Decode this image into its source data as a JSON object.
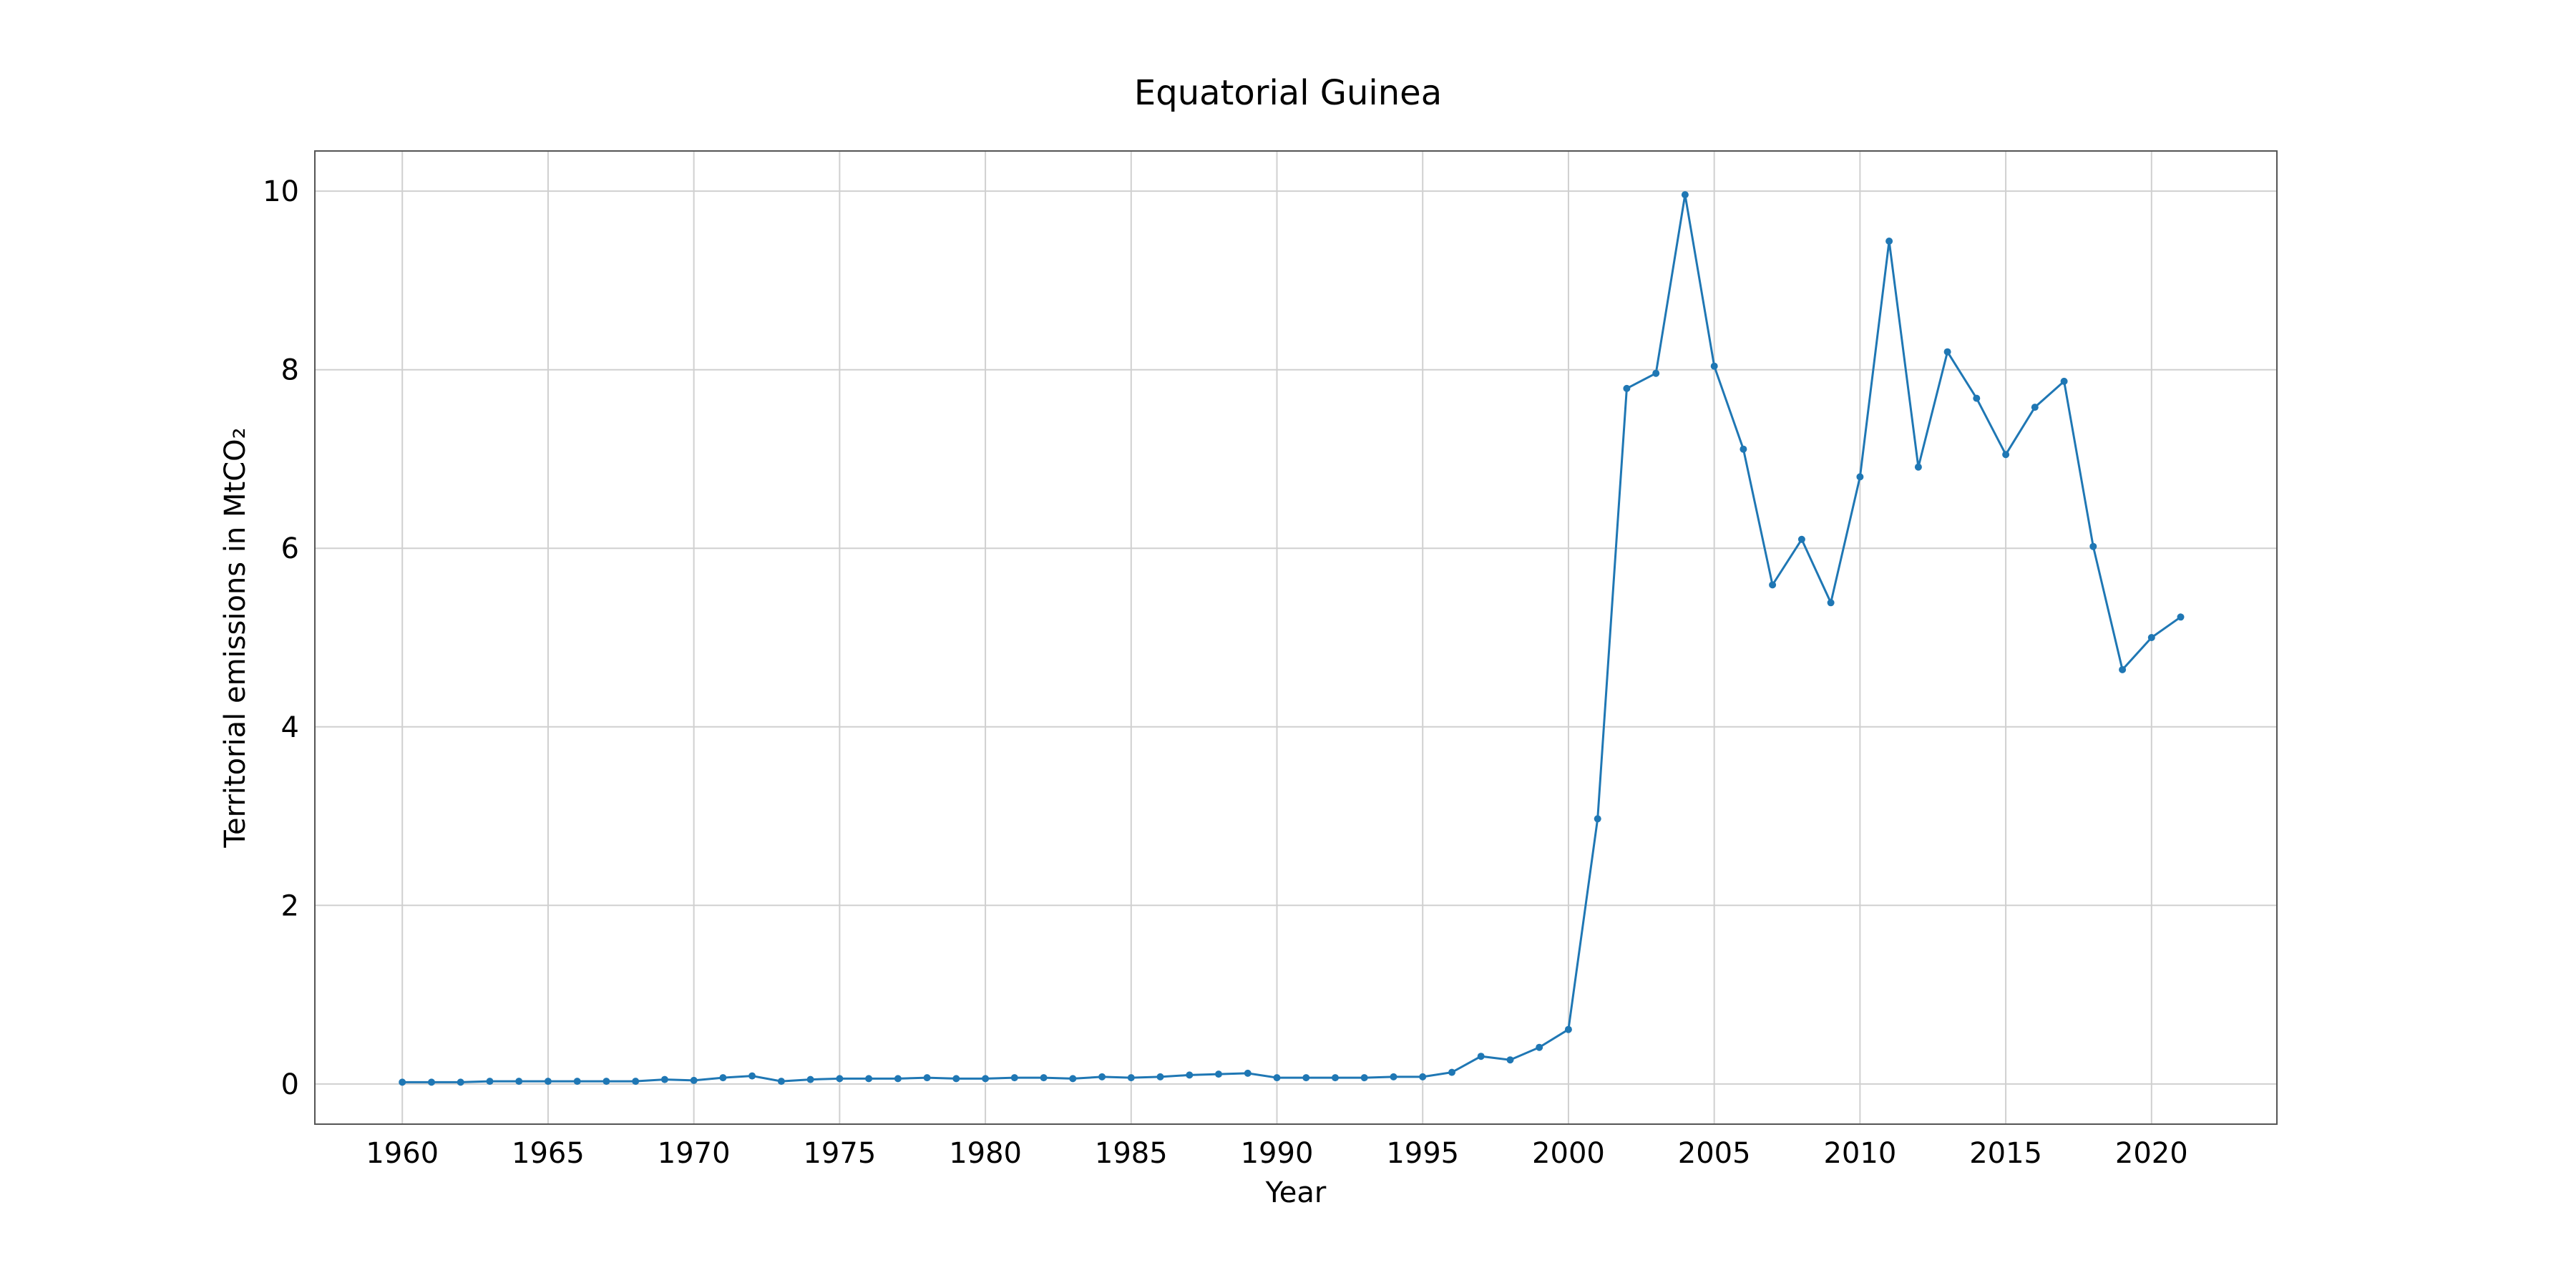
{
  "chart_data": {
    "type": "line",
    "title": "Equatorial Guinea",
    "xlabel": "Year",
    "ylabel": "Territorial emissions in MtCO₂",
    "xlim": [
      1957,
      2024.3
    ],
    "ylim": [
      -0.45,
      10.45
    ],
    "xticks": [
      1960,
      1965,
      1970,
      1975,
      1980,
      1985,
      1990,
      1995,
      2000,
      2005,
      2010,
      2015,
      2020
    ],
    "yticks": [
      0,
      2,
      4,
      6,
      8,
      10
    ],
    "grid": true,
    "color": "#1f77b4",
    "series": [
      {
        "x": [
          1960,
          1961,
          1962,
          1963,
          1964,
          1965,
          1966,
          1967,
          1968,
          1969,
          1970,
          1971,
          1972,
          1973,
          1974,
          1975,
          1976,
          1977,
          1978,
          1979,
          1980,
          1981,
          1982,
          1983,
          1984,
          1985,
          1986,
          1987,
          1988,
          1989,
          1990,
          1991,
          1992,
          1993,
          1994,
          1995,
          1996,
          1997,
          1998,
          1999,
          2000,
          2001,
          2002,
          2003,
          2004,
          2005,
          2006,
          2007,
          2008,
          2009,
          2010,
          2011,
          2012,
          2013,
          2014,
          2015,
          2016,
          2017,
          2018,
          2019,
          2020,
          2021
        ],
        "values": [
          0.02,
          0.02,
          0.02,
          0.03,
          0.03,
          0.03,
          0.03,
          0.03,
          0.03,
          0.05,
          0.04,
          0.07,
          0.09,
          0.03,
          0.05,
          0.06,
          0.06,
          0.06,
          0.07,
          0.06,
          0.06,
          0.07,
          0.07,
          0.06,
          0.08,
          0.07,
          0.08,
          0.1,
          0.11,
          0.12,
          0.07,
          0.07,
          0.07,
          0.07,
          0.08,
          0.08,
          0.13,
          0.31,
          0.27,
          0.41,
          0.61,
          2.97,
          7.79,
          7.96,
          9.96,
          8.04,
          7.11,
          5.59,
          6.1,
          5.39,
          6.8,
          9.44,
          6.91,
          8.2,
          7.68,
          7.05,
          7.58,
          7.87,
          6.02,
          4.64,
          5.0,
          5.23
        ]
      }
    ]
  }
}
